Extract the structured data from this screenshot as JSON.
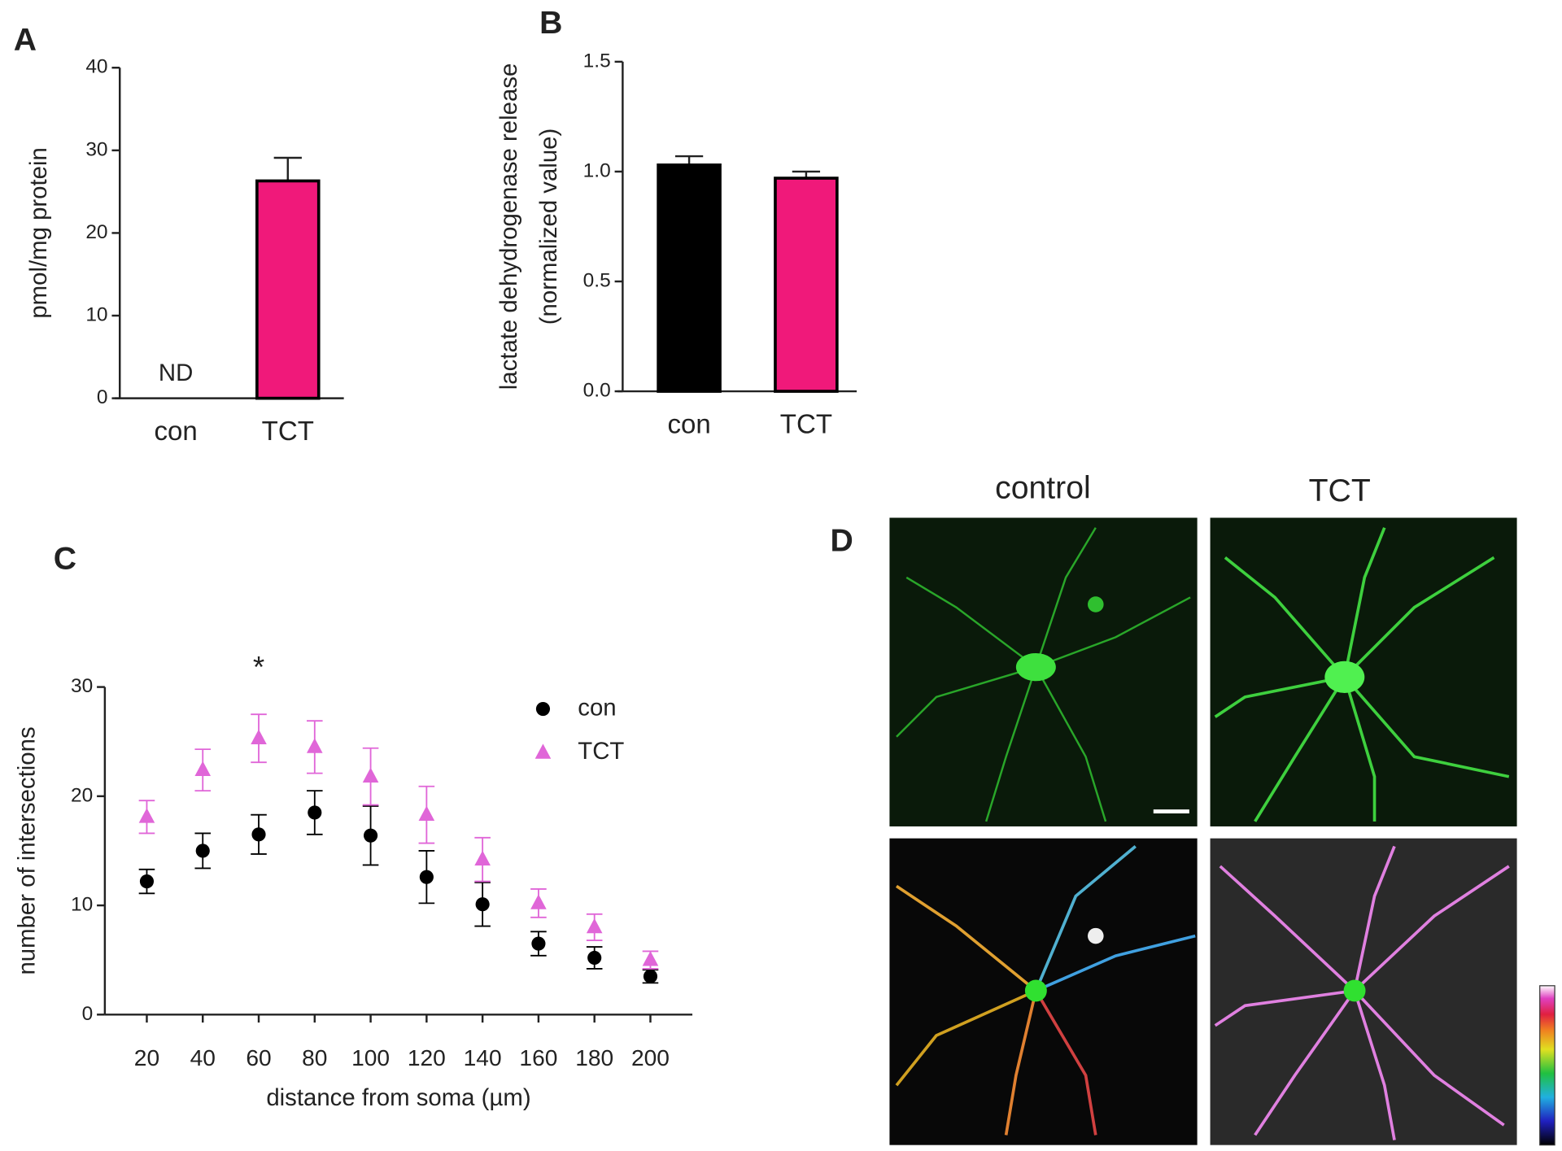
{
  "chart_data": [
    {
      "type": "bar",
      "label": "A",
      "ylabel": [
        "pmol/mg protein"
      ],
      "categories": [
        "con",
        "TCT"
      ],
      "values": [
        null,
        26.3
      ],
      "errors": [
        null,
        2.8
      ],
      "value_labels": [
        "ND",
        null
      ],
      "colors": [
        "#000000",
        "#f0197a"
      ],
      "ylim": [
        0,
        40
      ],
      "yticks": [
        0,
        10,
        20,
        30,
        40
      ]
    },
    {
      "type": "bar",
      "label": "B",
      "ylabel": [
        "lactate dehydrogenase release",
        "(normalized value)"
      ],
      "categories": [
        "con",
        "TCT"
      ],
      "values": [
        1.03,
        0.97
      ],
      "errors": [
        0.04,
        0.03
      ],
      "colors": [
        "#000000",
        "#f0197a"
      ],
      "ylim": [
        0,
        1.5
      ],
      "yticks": [
        {
          "value": 0,
          "label": "0.0"
        },
        0.5,
        {
          "value": 1,
          "label": "1.0"
        },
        1.5
      ]
    },
    {
      "type": "scatter",
      "label": "C",
      "xlabel": "distance from soma (µm)",
      "ylabel": [
        "number of intersections"
      ],
      "x": [
        20,
        40,
        60,
        80,
        100,
        120,
        140,
        160,
        180,
        200
      ],
      "series": [
        {
          "name": "con",
          "color": "#000000",
          "marker": "circle",
          "values": [
            12.2,
            15.0,
            16.5,
            18.5,
            16.4,
            12.6,
            10.1,
            6.5,
            5.2,
            3.5
          ],
          "errors": [
            1.1,
            1.6,
            1.8,
            2.0,
            2.7,
            2.4,
            2.0,
            1.1,
            1.0,
            0.6
          ]
        },
        {
          "name": "TCT",
          "color": "#e066d8",
          "marker": "triangle",
          "values": [
            18.1,
            22.4,
            25.3,
            24.5,
            21.8,
            18.3,
            14.2,
            10.2,
            8.0,
            5.0
          ],
          "errors": [
            1.5,
            1.9,
            2.2,
            2.4,
            2.6,
            2.6,
            2.0,
            1.3,
            1.2,
            0.8
          ]
        }
      ],
      "annotations": [
        {
          "text": "*",
          "x": 60
        }
      ],
      "xlim": [
        5,
        215
      ],
      "xticks": [
        20,
        40,
        60,
        80,
        100,
        120,
        140,
        160,
        180,
        200
      ],
      "ylim": [
        0,
        30
      ],
      "yticks": [
        0,
        10,
        20,
        30
      ],
      "legend": "upper right"
    }
  ],
  "panel_d": {
    "label": "D",
    "titles": [
      "control",
      "TCT"
    ]
  }
}
